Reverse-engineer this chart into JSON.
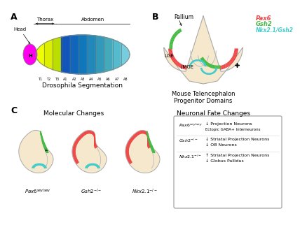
{
  "bg_color": "#FFFFFF",
  "panel_A_label": "A",
  "panel_B_label": "B",
  "panel_C_label": "C",
  "drosophila_title": "Drosophila Segmentation",
  "mouse_title": "Mouse Telencephalon\nProgenitor Domains",
  "molecular_title": "Molecular Changes",
  "neuronal_title": "Neuronal Fate Changes",
  "segments": [
    "H",
    "T1",
    "T2",
    "T3",
    "A1",
    "A2",
    "A3",
    "A4",
    "A5",
    "A6",
    "A7",
    "A8"
  ],
  "head_color": "#FF00EE",
  "thorax_colors": [
    "#EEFF00",
    "#DDEE00",
    "#BBDD00"
  ],
  "abdomen_colors": [
    "#1155BB",
    "#1166BB",
    "#1177BB",
    "#2288BB",
    "#3399BB",
    "#44AABB",
    "#55BBCC",
    "#77CCDD"
  ],
  "pax6_color": "#EE4444",
  "gsh2_color": "#44BB44",
  "nkx_color": "#44CCCC",
  "brain_fill": "#F5E8CC",
  "brain_outline": "#AAAAAA",
  "legend_pax6": "Pax6",
  "legend_gsh2": "Gsh2",
  "legend_nkx": "Nkx2.1/Gsh2"
}
